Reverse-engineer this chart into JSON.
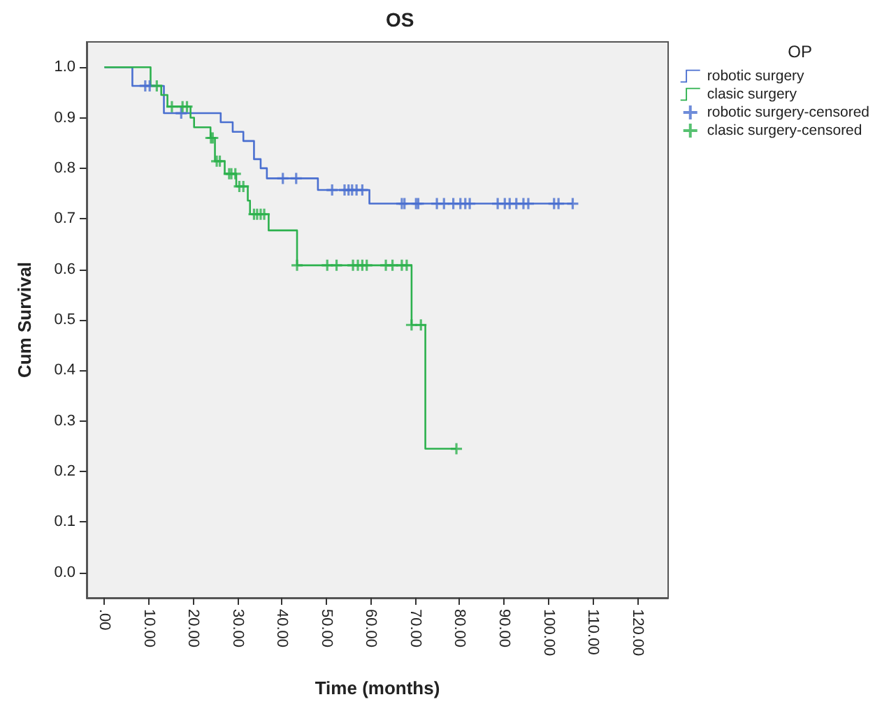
{
  "chart_data": {
    "type": "step",
    "title": "OS",
    "xlabel": "Time (months)",
    "ylabel": "Cum Survival",
    "legend_title": "OP",
    "legend": "top right",
    "grid": false,
    "xlim": [
      -4,
      127
    ],
    "ylim": [
      -0.05,
      1.05
    ],
    "xticks": [
      {
        "value": 0,
        "label": ".00"
      },
      {
        "value": 10,
        "label": "10.00"
      },
      {
        "value": 20,
        "label": "20.00"
      },
      {
        "value": 30,
        "label": "30.00"
      },
      {
        "value": 40,
        "label": "40.00"
      },
      {
        "value": 50,
        "label": "50.00"
      },
      {
        "value": 60,
        "label": "60.00"
      },
      {
        "value": 70,
        "label": "70.00"
      },
      {
        "value": 80,
        "label": "80.00"
      },
      {
        "value": 90,
        "label": "90.00"
      },
      {
        "value": 100,
        "label": "100.00"
      },
      {
        "value": 110,
        "label": "110.00"
      },
      {
        "value": 120,
        "label": "120.00"
      }
    ],
    "yticks": [
      {
        "value": 0,
        "label": "0.0"
      },
      {
        "value": 0.1,
        "label": "0.1"
      },
      {
        "value": 0.2,
        "label": "0.2"
      },
      {
        "value": 0.3,
        "label": "0.3"
      },
      {
        "value": 0.4,
        "label": "0.4"
      },
      {
        "value": 0.5,
        "label": "0.5"
      },
      {
        "value": 0.6,
        "label": "0.6"
      },
      {
        "value": 0.7,
        "label": "0.7"
      },
      {
        "value": 0.8,
        "label": "0.8"
      },
      {
        "value": 0.9,
        "label": "0.9"
      },
      {
        "value": 1,
        "label": "1.0"
      }
    ],
    "series": [
      {
        "name": "robotic surgery",
        "color": "#4a6fd0",
        "marker": "none",
        "x": [
          0,
          6.3,
          13.4,
          26.2,
          28.9,
          31.3,
          33.7,
          35.2,
          36.6,
          48.1,
          59.7,
          105.5
        ],
        "values": [
          1,
          0.963,
          0.909,
          0.891,
          0.872,
          0.854,
          0.818,
          0.8,
          0.78,
          0.757,
          0.73,
          0.73
        ]
      },
      {
        "name": "clasic surgery",
        "color": "#2db14e",
        "marker": "none",
        "x": [
          0,
          10.4,
          12.8,
          14.2,
          19.4,
          20.2,
          23.9,
          24.9,
          27.1,
          29.7,
          32.3,
          32.8,
          37,
          43.4,
          69.2,
          72.3,
          79.3
        ],
        "values": [
          1,
          0.963,
          0.945,
          0.922,
          0.9,
          0.881,
          0.86,
          0.814,
          0.789,
          0.764,
          0.736,
          0.709,
          0.677,
          0.608,
          0.49,
          0.245,
          0.245
        ]
      },
      {
        "name": "robotic surgery-censored",
        "type": "scatter",
        "color": "#4a6fd0",
        "marker": "cross",
        "x": [
          9.2,
          10.2,
          17.3,
          40.2,
          43.2,
          51.3,
          54.1,
          55,
          55.8,
          56.8,
          58.1,
          67,
          67.6,
          70.2,
          70.7,
          74.9,
          76.5,
          78.6,
          80.2,
          81.3,
          82.3,
          88.6,
          90.2,
          91.3,
          92.8,
          94.4,
          95.5,
          101.3,
          102.3,
          105.5
        ],
        "values": [
          0.963,
          0.963,
          0.909,
          0.78,
          0.78,
          0.757,
          0.757,
          0.757,
          0.757,
          0.757,
          0.757,
          0.73,
          0.73,
          0.73,
          0.73,
          0.73,
          0.73,
          0.73,
          0.73,
          0.73,
          0.73,
          0.73,
          0.73,
          0.73,
          0.73,
          0.73,
          0.73,
          0.73,
          0.73,
          0.73
        ]
      },
      {
        "name": "clasic surgery-censored",
        "type": "scatter",
        "color": "#2db14e",
        "marker": "cross",
        "x": [
          11.8,
          15.2,
          17.6,
          18.6,
          24,
          24.4,
          25.3,
          26,
          28.1,
          28.6,
          29.5,
          30.4,
          31.3,
          33.7,
          34.4,
          35.2,
          36,
          43.4,
          50.2,
          52.3,
          56,
          57.1,
          58.1,
          59.1,
          63.4,
          64.9,
          67,
          68.1,
          69.2,
          71.3,
          79.3
        ],
        "values": [
          0.963,
          0.922,
          0.922,
          0.922,
          0.86,
          0.86,
          0.814,
          0.814,
          0.789,
          0.789,
          0.789,
          0.764,
          0.764,
          0.709,
          0.709,
          0.709,
          0.709,
          0.608,
          0.608,
          0.608,
          0.608,
          0.608,
          0.608,
          0.608,
          0.608,
          0.608,
          0.608,
          0.608,
          0.49,
          0.49,
          0.245
        ]
      }
    ]
  }
}
